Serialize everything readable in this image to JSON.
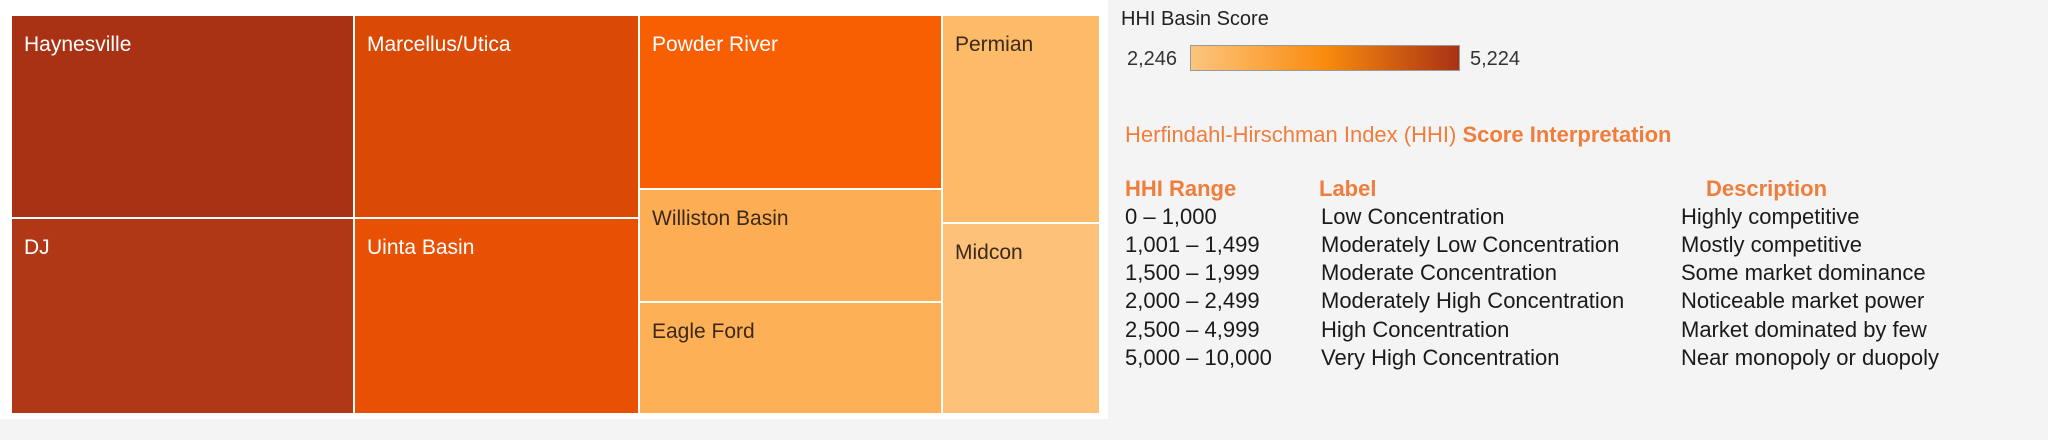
{
  "chart_data": {
    "type": "treemap",
    "measure": "HHI Basin Score",
    "tiles": [
      {
        "label": "Haynesville",
        "color": "#a93214"
      },
      {
        "label": "DJ",
        "color": "#b13816"
      },
      {
        "label": "Marcellus/Utica",
        "color": "#db4a05"
      },
      {
        "label": "Uinta Basin",
        "color": "#e85104"
      },
      {
        "label": "Powder River",
        "color": "#f75f02"
      },
      {
        "label": "Williston Basin",
        "color": "#fdad53"
      },
      {
        "label": "Eagle Ford",
        "color": "#fdb055"
      },
      {
        "label": "Permian",
        "color": "#fdba68"
      },
      {
        "label": "Midcon",
        "color": "#fdc17a"
      }
    ]
  },
  "legend": {
    "title": "HHI Basin Score",
    "min_label": "2,246",
    "max_label": "5,224",
    "gradient_colors": [
      "#fdc57e",
      "#f98b0e",
      "#a93214"
    ]
  },
  "interpretation": {
    "heading_prefix": "Herfindahl-Hirschman Index (HHI)",
    "heading_bold": "Score Interpretation",
    "columns": {
      "range": "HHI Range",
      "label": "Label",
      "description": "Description"
    },
    "rows": [
      {
        "range": "0 – 1,000",
        "label": "Low Concentration",
        "description": "Highly competitive"
      },
      {
        "range": "1,001 – 1,499",
        "label": "Moderately Low Concentration",
        "description": "Mostly competitive"
      },
      {
        "range": "1,500 – 1,999",
        "label": "Moderate Concentration",
        "description": "Some market dominance"
      },
      {
        "range": "2,000 – 2,499",
        "label": "Moderately High Concentration",
        "description": "Noticeable market power"
      },
      {
        "range": "2,500 – 4,999",
        "label": "High Concentration",
        "description": "Market dominated by few"
      },
      {
        "range": "5,000 – 10,000",
        "label": "Very High Concentration",
        "description": "Near monopoly or duopoly"
      }
    ]
  }
}
